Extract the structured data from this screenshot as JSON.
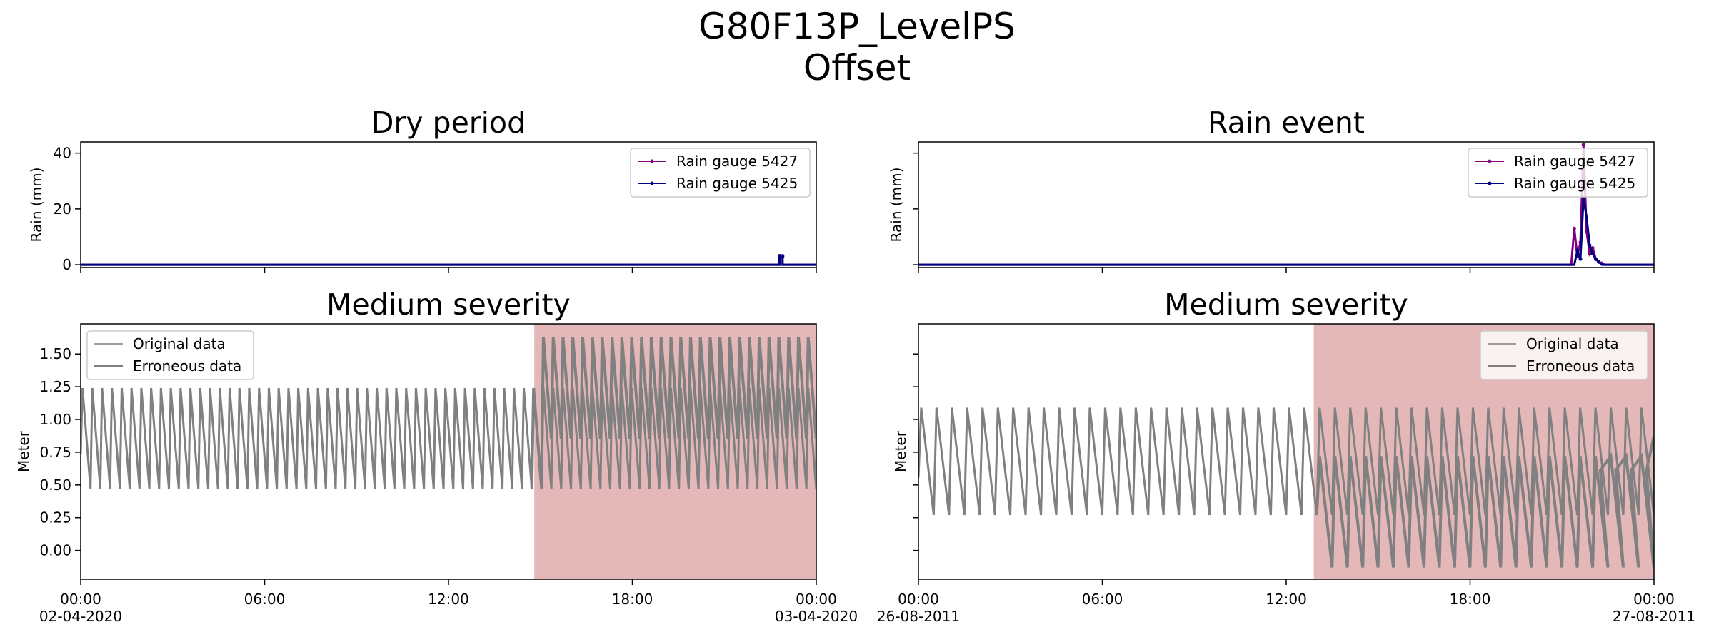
{
  "figure": {
    "title_line1": "G80F13P_LevelPS",
    "title_line2": "Offset"
  },
  "colors": {
    "rain_5427": "#800080",
    "rain_5425": "#000080",
    "level": "#808080",
    "error_shade": "#e4b8b9"
  },
  "chart_data": [
    {
      "type": "line",
      "title": "Dry period",
      "ylabel": "Rain (mm)",
      "ylim": [
        -1,
        44
      ],
      "yticks": [
        0,
        20,
        40
      ],
      "yticklabels": [
        "0",
        "20",
        "40"
      ],
      "grid": false,
      "legend_position": "upper right",
      "series": [
        {
          "name": "Rain gauge 5427",
          "color": "#800080",
          "x": [
            0,
            22.8,
            22.8,
            22.9,
            22.9,
            24
          ],
          "y": [
            0,
            0,
            2.8,
            2.8,
            0,
            0
          ]
        },
        {
          "name": "Rain gauge 5425",
          "color": "#000080",
          "x": [
            0,
            22.8,
            22.8,
            22.9,
            22.9,
            24
          ],
          "y": [
            0,
            0,
            3.2,
            3.2,
            0,
            0
          ]
        }
      ]
    },
    {
      "type": "line",
      "title": "Rain event",
      "ylabel": "Rain (mm)",
      "ylim": [
        -1,
        44
      ],
      "yticks": [
        0,
        20,
        40
      ],
      "yticklabels": [
        "",
        "",
        ""
      ],
      "grid": false,
      "legend_position": "upper right",
      "series": [
        {
          "name": "Rain gauge 5427",
          "color": "#800080",
          "x": [
            0,
            21.3,
            21.4,
            21.5,
            21.6,
            21.7,
            21.8,
            21.9,
            22.0,
            22.1,
            22.2,
            22.3,
            22.4,
            24
          ],
          "y": [
            0,
            0,
            13,
            3,
            8,
            43,
            12,
            4,
            6,
            2,
            1,
            0.5,
            0,
            0
          ]
        },
        {
          "name": "Rain gauge 5425",
          "color": "#000080",
          "x": [
            0,
            21.4,
            21.5,
            21.6,
            21.7,
            21.8,
            21.9,
            22.0,
            22.1,
            22.2,
            22.3,
            24
          ],
          "y": [
            0,
            0,
            5,
            2,
            24,
            17,
            7,
            4,
            2,
            1,
            0,
            0
          ]
        }
      ]
    },
    {
      "type": "line",
      "title": "Medium severity",
      "ylabel": "Meter",
      "ylim": [
        -0.22,
        1.73
      ],
      "yticks": [
        0,
        0.25,
        0.5,
        0.75,
        1.0,
        1.25,
        1.5
      ],
      "yticklabels": [
        "0.00",
        "0.25",
        "0.50",
        "0.75",
        "1.00",
        "1.25",
        "1.50"
      ],
      "grid": false,
      "legend_position": "upper left",
      "error_region": [
        14.8,
        24
      ],
      "sawtooth": {
        "start": 0,
        "end": 24,
        "cycles": 75,
        "low": 0.47,
        "high": 1.24,
        "error_start": 14.8,
        "error_low": 0.85,
        "error_high": 1.63
      },
      "series": [
        {
          "name": "Original data",
          "color": "#808080",
          "width": "thin"
        },
        {
          "name": "Erroneous data",
          "color": "#808080",
          "width": "thick"
        }
      ]
    },
    {
      "type": "line",
      "title": "Medium severity",
      "ylabel": "Meter",
      "ylim": [
        -0.22,
        1.73
      ],
      "yticks": [
        0,
        0.25,
        0.5,
        0.75,
        1.0,
        1.25,
        1.5
      ],
      "yticklabels": [
        "",
        "",
        "",
        "",
        "",
        "",
        ""
      ],
      "grid": false,
      "legend_position": "upper right",
      "error_region": [
        12.9,
        24
      ],
      "sawtooth": {
        "start": 0,
        "end": 24,
        "cycles": 48,
        "low": 0.27,
        "high": 1.09,
        "error_start": 12.9,
        "error_low": -0.13,
        "error_high": 0.72,
        "chaos_start": 21.5
      },
      "series": [
        {
          "name": "Original data",
          "color": "#808080",
          "width": "thin"
        },
        {
          "name": "Erroneous data",
          "color": "#808080",
          "width": "thick"
        }
      ]
    }
  ],
  "x_axes": [
    {
      "ticks": [
        0,
        6,
        12,
        18,
        24
      ],
      "labels": [
        "00:00\n02-04-2020",
        "06:00",
        "12:00",
        "18:00",
        "00:00\n03-04-2020"
      ]
    },
    {
      "ticks": [
        0,
        6,
        12,
        18,
        24
      ],
      "labels": [
        "00:00\n26-08-2011",
        "06:00",
        "12:00",
        "18:00",
        "00:00\n27-08-2011"
      ]
    }
  ]
}
